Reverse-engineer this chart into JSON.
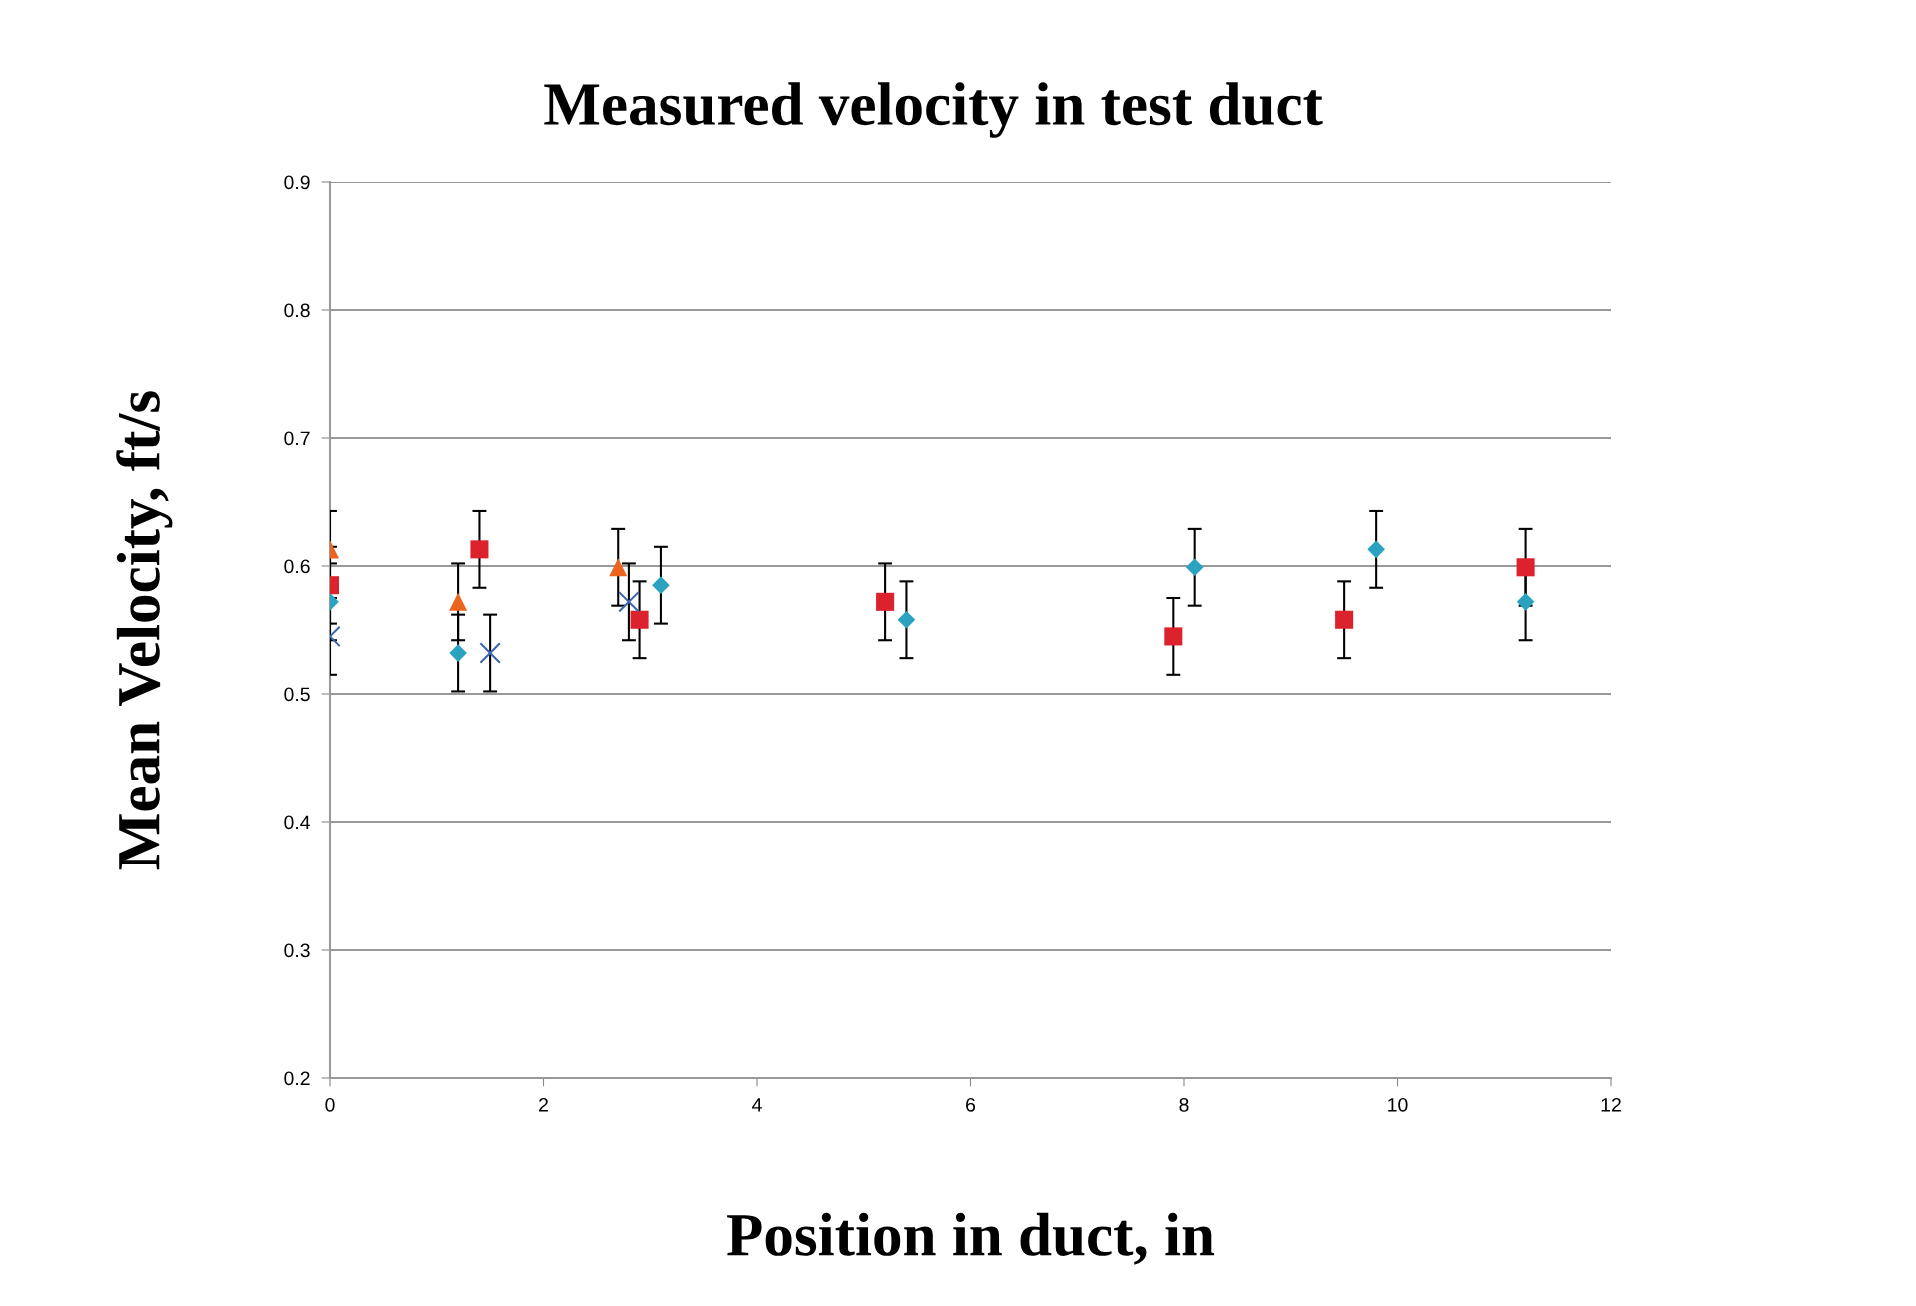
{
  "chart_data": {
    "type": "scatter",
    "title": "Measured velocity in test duct",
    "xlabel": "Position in duct, in",
    "ylabel": "Mean Velocity, ft/s",
    "xlim": [
      0,
      12
    ],
    "xticks": [
      0,
      2,
      4,
      6,
      8,
      10,
      12
    ],
    "ylim": [
      0.2,
      0.9
    ],
    "yticks": [
      {
        "value": 0.2,
        "label": "0.2"
      },
      {
        "value": 0.3,
        "label": "0.3"
      },
      {
        "value": 0.4,
        "label": "0.4"
      },
      {
        "value": 0.5,
        "label": "0.5"
      },
      {
        "value": 0.6,
        "label": "0.6"
      },
      {
        "value": 0.7,
        "label": "0.7"
      },
      {
        "value": 0.8,
        "label": "0.8"
      },
      {
        "value": 0.9,
        "label": "0.9"
      }
    ],
    "grid": "y",
    "legend": false,
    "series": [
      {
        "color": "#2ba3c0",
        "marker": "diamond",
        "x": [
          0,
          1.2,
          3.1,
          5.4,
          8.1,
          9.8,
          11.2
        ],
        "values": [
          0.572,
          0.532,
          0.585,
          0.558,
          0.599,
          0.613,
          0.572
        ],
        "errors": [
          0.03,
          0.03,
          0.03,
          0.03,
          0.03,
          0.03,
          0.03
        ]
      },
      {
        "color": "#dc222c",
        "marker": "square",
        "x": [
          0,
          1.4,
          2.9,
          5.2,
          7.9,
          9.5,
          11.2
        ],
        "values": [
          0.585,
          0.613,
          0.558,
          0.572,
          0.545,
          0.558,
          0.599
        ],
        "errors": [
          0.03,
          0.03,
          0.03,
          0.03,
          0.03,
          0.03,
          0.03
        ]
      },
      {
        "color": "#ec6520",
        "marker": "triangle",
        "x": [
          0,
          1.2,
          2.7
        ],
        "values": [
          0.613,
          0.572,
          0.599
        ],
        "errors": [
          0.03,
          0.03,
          0.03
        ]
      },
      {
        "color": "#3d66b0",
        "marker": "cross",
        "x": [
          0,
          1.5,
          2.8
        ],
        "values": [
          0.545,
          0.532,
          0.572
        ],
        "errors": [
          0.03,
          0.03,
          0.03
        ]
      }
    ]
  }
}
